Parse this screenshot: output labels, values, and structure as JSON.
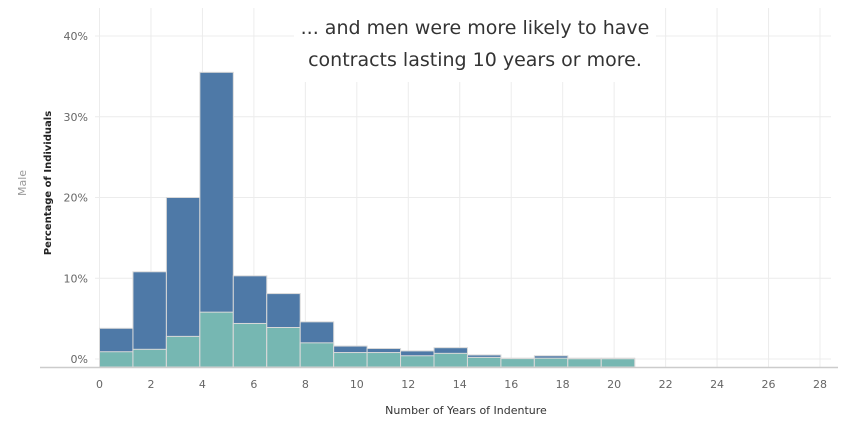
{
  "chart_data": {
    "type": "bar",
    "facet_label": "Male",
    "annotation": "... and men were more likely to have contracts lasting 10 years or more.",
    "xlabel": "Number of Years of Indenture",
    "ylabel": "Percentage of Individuals",
    "xlim": [
      -1,
      28
    ],
    "ylim": [
      0,
      40
    ],
    "x_ticks": [
      0,
      2,
      4,
      6,
      8,
      10,
      12,
      14,
      16,
      18,
      20,
      22,
      24,
      26,
      28
    ],
    "y_ticks": [
      0,
      10,
      20,
      30,
      40
    ],
    "y_tick_labels": [
      "0%",
      "10%",
      "20%",
      "30%",
      "40%"
    ],
    "grid": true,
    "colors": {
      "total": "#4e79a7",
      "segment": "#76b7b2",
      "bar_edge": "#d9d9d9",
      "grid": "#ececec",
      "axis": "#cccccc"
    },
    "bin_width": 1.3,
    "x": [
      0,
      1.3,
      2.6,
      3.9,
      5.2,
      6.5,
      7.8,
      9.1,
      10.4,
      11.7,
      13.0,
      14.3,
      15.6,
      16.9,
      18.2,
      19.5
    ],
    "series": [
      {
        "values": [
          3.8,
          10.8,
          20.0,
          35.5,
          10.3,
          8.1,
          4.6,
          1.6,
          1.3,
          1.0,
          1.4,
          0.5,
          0.1,
          0.4,
          0.1,
          0.1
        ]
      },
      {
        "values": [
          0.9,
          1.2,
          2.8,
          5.8,
          4.4,
          3.9,
          2.0,
          0.8,
          0.8,
          0.4,
          0.7,
          0.2,
          0.05,
          0.1,
          0.03,
          0.03
        ]
      }
    ]
  }
}
